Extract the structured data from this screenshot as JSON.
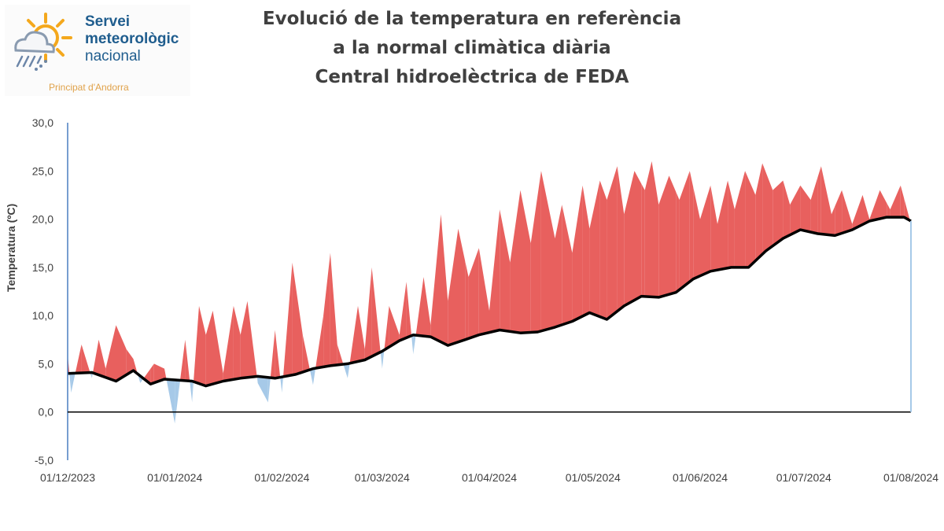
{
  "logo": {
    "line1": "Servei",
    "line2": "meteorològic",
    "line3": "nacional",
    "sub": "Principat d'Andorra",
    "icon": "sun-cloud-rain-icon",
    "colors": {
      "sun": "#f4a81d",
      "cloud": "#8a9bb0",
      "text": "#1f5d8e"
    }
  },
  "title_lines": [
    "Evolució de la temperatura en referència",
    "a la normal climàtica diària",
    "Central hidroelèctrica de FEDA"
  ],
  "chart_data": {
    "type": "area",
    "ylabel": "Temperatura (ºC)",
    "ylim": [
      -5,
      30
    ],
    "ytick_labels": [
      "-5,0",
      "0,0",
      "5,0",
      "10,0",
      "15,0",
      "20,0",
      "25,0",
      "30,0"
    ],
    "yticks": [
      -5,
      0,
      5,
      10,
      15,
      20,
      25,
      30
    ],
    "x_range": [
      "2023-12-01",
      "2024-08-01"
    ],
    "xtick_labels": [
      "01/12/2023",
      "01/01/2024",
      "01/02/2024",
      "01/03/2024",
      "01/04/2024",
      "01/05/2024",
      "01/06/2024",
      "01/07/2024",
      "01/08/2024"
    ],
    "xticks": [
      "2023-12-01",
      "2024-01-01",
      "2024-02-01",
      "2024-03-01",
      "2024-04-01",
      "2024-05-01",
      "2024-06-01",
      "2024-07-01",
      "2024-08-01"
    ],
    "grid": false,
    "colors": {
      "above": "#e8605e",
      "below": "#a6c9e8",
      "normal": "#000000",
      "axis": "#4a7fc0"
    },
    "series": [
      {
        "name": "",
        "role": "normal",
        "x": [
          "2023-12-01",
          "2023-12-08",
          "2023-12-15",
          "2023-12-20",
          "2023-12-25",
          "2023-12-29",
          "2024-01-02",
          "2024-01-06",
          "2024-01-10",
          "2024-01-15",
          "2024-01-20",
          "2024-01-25",
          "2024-01-30",
          "2024-02-05",
          "2024-02-10",
          "2024-02-15",
          "2024-02-20",
          "2024-02-25",
          "2024-03-01",
          "2024-03-06",
          "2024-03-10",
          "2024-03-15",
          "2024-03-20",
          "2024-03-25",
          "2024-03-29",
          "2024-04-04",
          "2024-04-10",
          "2024-04-15",
          "2024-04-20",
          "2024-04-25",
          "2024-04-30",
          "2024-05-05",
          "2024-05-10",
          "2024-05-15",
          "2024-05-20",
          "2024-05-25",
          "2024-05-30",
          "2024-06-04",
          "2024-06-10",
          "2024-06-15",
          "2024-06-20",
          "2024-06-25",
          "2024-06-30",
          "2024-07-05",
          "2024-07-10",
          "2024-07-15",
          "2024-07-20",
          "2024-07-25",
          "2024-07-30",
          "2024-08-01"
        ],
        "y": [
          4.0,
          4.1,
          3.2,
          4.3,
          2.9,
          3.4,
          3.3,
          3.2,
          2.7,
          3.2,
          3.5,
          3.7,
          3.5,
          3.9,
          4.5,
          4.8,
          5.0,
          5.4,
          6.3,
          7.4,
          8.0,
          7.8,
          6.9,
          7.5,
          8.0,
          8.5,
          8.2,
          8.3,
          8.8,
          9.4,
          10.3,
          9.6,
          11.0,
          12.0,
          11.9,
          12.4,
          13.8,
          14.6,
          15.0,
          15.0,
          16.7,
          18.0,
          18.9,
          18.5,
          18.3,
          18.9,
          19.8,
          20.2,
          20.2,
          19.8
        ]
      },
      {
        "name": "",
        "role": "observed",
        "x": [
          "2023-12-01",
          "2023-12-02",
          "2023-12-05",
          "2023-12-08",
          "2023-12-10",
          "2023-12-12",
          "2023-12-15",
          "2023-12-18",
          "2023-12-20",
          "2023-12-22",
          "2023-12-26",
          "2023-12-29",
          "2024-01-01",
          "2024-01-04",
          "2024-01-06",
          "2024-01-08",
          "2024-01-10",
          "2024-01-12",
          "2024-01-15",
          "2024-01-18",
          "2024-01-20",
          "2024-01-22",
          "2024-01-25",
          "2024-01-28",
          "2024-01-30",
          "2024-02-01",
          "2024-02-04",
          "2024-02-07",
          "2024-02-10",
          "2024-02-13",
          "2024-02-15",
          "2024-02-17",
          "2024-02-20",
          "2024-02-23",
          "2024-02-25",
          "2024-02-27",
          "2024-03-01",
          "2024-03-03",
          "2024-03-06",
          "2024-03-08",
          "2024-03-10",
          "2024-03-13",
          "2024-03-15",
          "2024-03-18",
          "2024-03-20",
          "2024-03-23",
          "2024-03-26",
          "2024-03-29",
          "2024-04-01",
          "2024-04-04",
          "2024-04-07",
          "2024-04-10",
          "2024-04-13",
          "2024-04-16",
          "2024-04-20",
          "2024-04-22",
          "2024-04-25",
          "2024-04-28",
          "2024-04-30",
          "2024-05-03",
          "2024-05-05",
          "2024-05-08",
          "2024-05-10",
          "2024-05-13",
          "2024-05-16",
          "2024-05-18",
          "2024-05-20",
          "2024-05-23",
          "2024-05-26",
          "2024-05-29",
          "2024-06-01",
          "2024-06-04",
          "2024-06-06",
          "2024-06-09",
          "2024-06-11",
          "2024-06-14",
          "2024-06-17",
          "2024-06-19",
          "2024-06-22",
          "2024-06-25",
          "2024-06-27",
          "2024-06-30",
          "2024-07-03",
          "2024-07-06",
          "2024-07-09",
          "2024-07-12",
          "2024-07-15",
          "2024-07-18",
          "2024-07-20",
          "2024-07-23",
          "2024-07-26",
          "2024-07-29",
          "2024-08-01"
        ],
        "y": [
          6.0,
          2.0,
          7.0,
          3.5,
          7.5,
          4.5,
          9.0,
          6.5,
          5.5,
          3.0,
          5.0,
          4.5,
          -1.2,
          7.5,
          1.0,
          11.0,
          8.0,
          10.5,
          4.0,
          11.0,
          8.0,
          11.5,
          3.0,
          1.0,
          8.5,
          2.0,
          15.5,
          8.0,
          2.8,
          10.0,
          16.5,
          7.0,
          3.5,
          11.0,
          6.5,
          15.0,
          4.5,
          11.0,
          8.0,
          13.5,
          6.0,
          14.0,
          9.0,
          20.5,
          11.5,
          19.0,
          14.0,
          17.0,
          10.5,
          21.0,
          15.5,
          23.0,
          17.5,
          25.0,
          18.0,
          21.5,
          16.5,
          23.5,
          19.0,
          24.0,
          22.0,
          25.5,
          20.5,
          25.0,
          23.0,
          26.0,
          21.5,
          24.5,
          22.0,
          25.0,
          20.0,
          23.5,
          19.5,
          24.0,
          21.0,
          25.0,
          22.5,
          25.8,
          23.0,
          24.0,
          21.5,
          23.5,
          22.0,
          25.5,
          20.5,
          23.0,
          19.5,
          22.5,
          20.0,
          23.0,
          21.0,
          23.5,
          19.5
        ]
      }
    ]
  }
}
